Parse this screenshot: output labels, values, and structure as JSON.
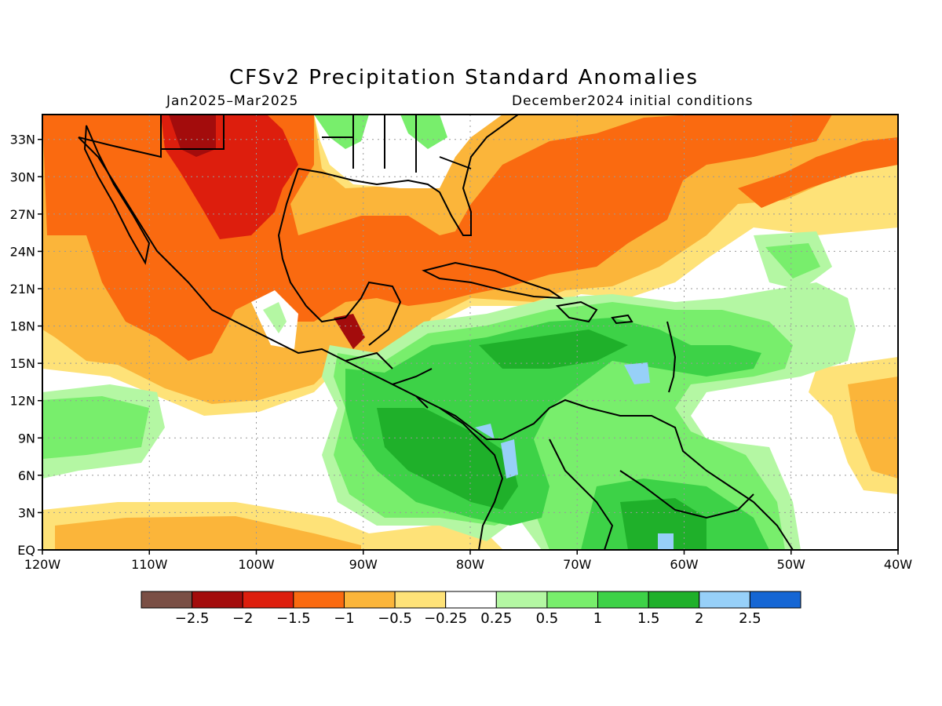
{
  "title": "CFSv2 Precipitation Standard Anomalies",
  "subtitle_left": "Jan2025–Mar2025",
  "subtitle_right": "December2024 initial conditions",
  "map": {
    "lon_range": [
      -120,
      -40
    ],
    "lat_range": [
      0,
      35
    ],
    "lon_ticks": [
      {
        "lon": -120,
        "label": "120W"
      },
      {
        "lon": -110,
        "label": "110W"
      },
      {
        "lon": -100,
        "label": "100W"
      },
      {
        "lon": -90,
        "label": "90W"
      },
      {
        "lon": -80,
        "label": "80W"
      },
      {
        "lon": -70,
        "label": "70W"
      },
      {
        "lon": -60,
        "label": "60W"
      },
      {
        "lon": -50,
        "label": "50W"
      },
      {
        "lon": -40,
        "label": "40W"
      }
    ],
    "lat_ticks": [
      {
        "lat": 0,
        "label": "EQ"
      },
      {
        "lat": 3,
        "label": "3N"
      },
      {
        "lat": 6,
        "label": "6N"
      },
      {
        "lat": 9,
        "label": "9N"
      },
      {
        "lat": 12,
        "label": "12N"
      },
      {
        "lat": 15,
        "label": "15N"
      },
      {
        "lat": 18,
        "label": "18N"
      },
      {
        "lat": 21,
        "label": "21N"
      },
      {
        "lat": 24,
        "label": "24N"
      },
      {
        "lat": 27,
        "label": "27N"
      },
      {
        "lat": 30,
        "label": "30N"
      },
      {
        "lat": 33,
        "label": "33N"
      }
    ],
    "grid": true
  },
  "colorbar": {
    "colors": [
      "#7a4f45",
      "#a30c0c",
      "#dd1e0d",
      "#fa6a10",
      "#fbb53a",
      "#fee278",
      "#ffffff",
      "#b4f7a3",
      "#78ee6c",
      "#3dd247",
      "#1fb02a",
      "#97d0f8",
      "#1566d4"
    ],
    "labels": [
      "−2.5",
      "−2",
      "−1.5",
      "−1",
      "−0.5",
      "−0.25",
      "0.25",
      "0.5",
      "1",
      "1.5",
      "2",
      "2.5"
    ]
  },
  "colors": {
    "dry_strong": "#dd1e0d",
    "dry_moderate": "#fa6a10",
    "dry_light": "#fbb53a",
    "dry_weak": "#fee278",
    "neutral": "#ffffff",
    "wet_weak": "#b4f7a3",
    "wet_light": "#78ee6c",
    "wet_moderate": "#3dd247",
    "wet_strong": "#1fb02a",
    "wet_extreme": "#97d0f8"
  }
}
